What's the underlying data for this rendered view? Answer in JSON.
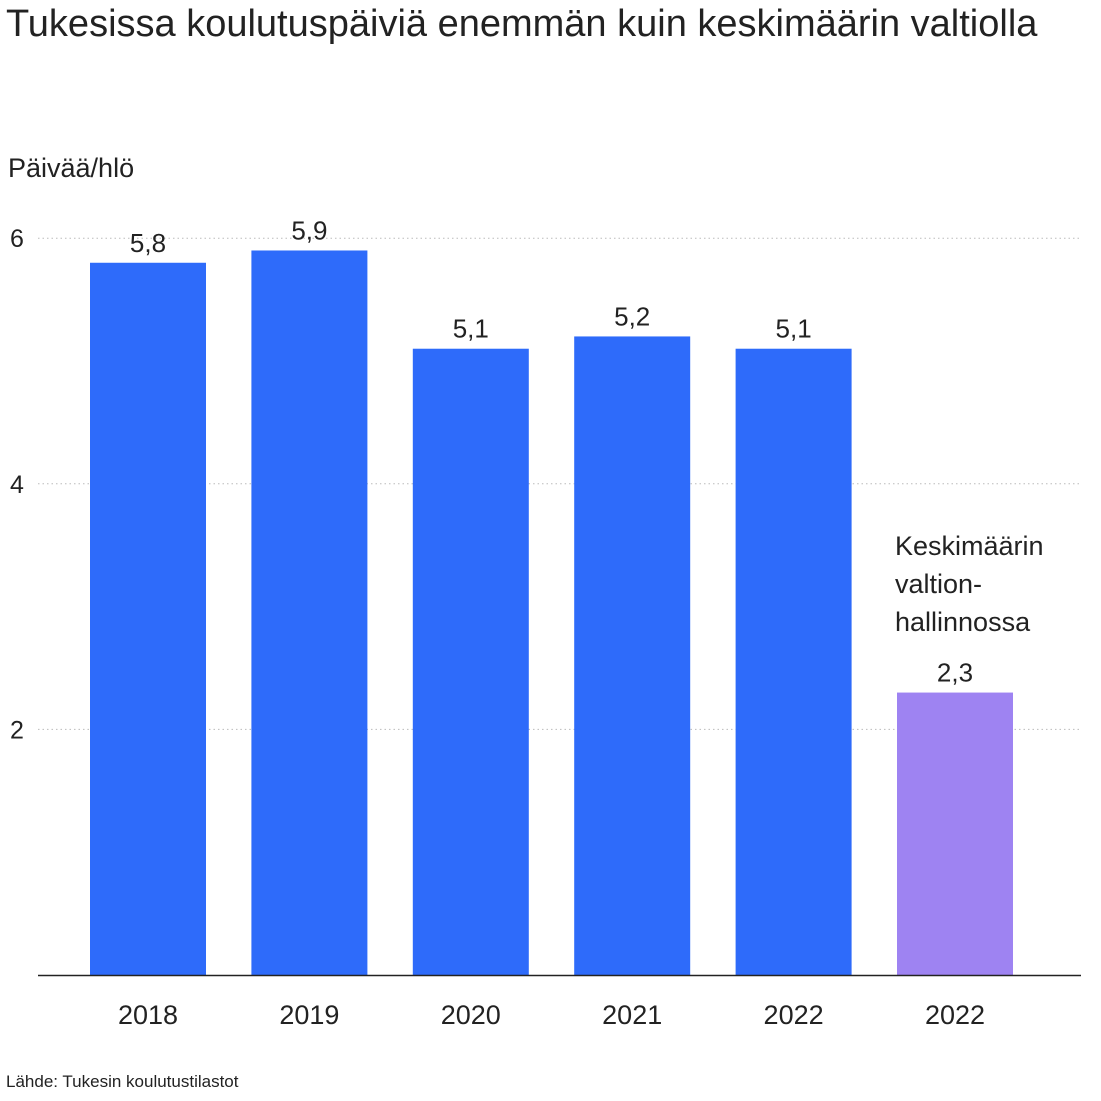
{
  "chart_data": {
    "type": "bar",
    "title": "Tukesissa koulutuspäiviä enemmän kuin keskimäärin valtiolla",
    "ylabel": "Päivää/hlö",
    "xlabel": "",
    "categories": [
      "2018",
      "2019",
      "2020",
      "2021",
      "2022",
      "2022"
    ],
    "values": [
      5.8,
      5.9,
      5.1,
      5.2,
      5.1,
      2.3
    ],
    "value_labels": [
      "5,8",
      "5,9",
      "5,1",
      "5,2",
      "5,1",
      "2,3"
    ],
    "bar_colors": [
      "#2e6bfa",
      "#2e6bfa",
      "#2e6bfa",
      "#2e6bfa",
      "#2e6bfa",
      "#9e83f2"
    ],
    "ylim": [
      0,
      6
    ],
    "yticks": [
      2,
      4,
      6
    ],
    "ytick_labels": [
      "2",
      "4",
      "6"
    ],
    "grid": "dotted horizontal",
    "legend": "none",
    "annotation": {
      "bar_index": 5,
      "lines": [
        "Keskimäärin",
        "valtion-",
        "hallinnossa"
      ]
    },
    "source": "Lähde: Tukesin koulutustilastot"
  },
  "colors": {
    "tukes_bar": "#2e6bfa",
    "valtio_bar": "#9e83f2",
    "text": "#222222",
    "grid": "#bbbbbb",
    "axis": "#222222"
  }
}
